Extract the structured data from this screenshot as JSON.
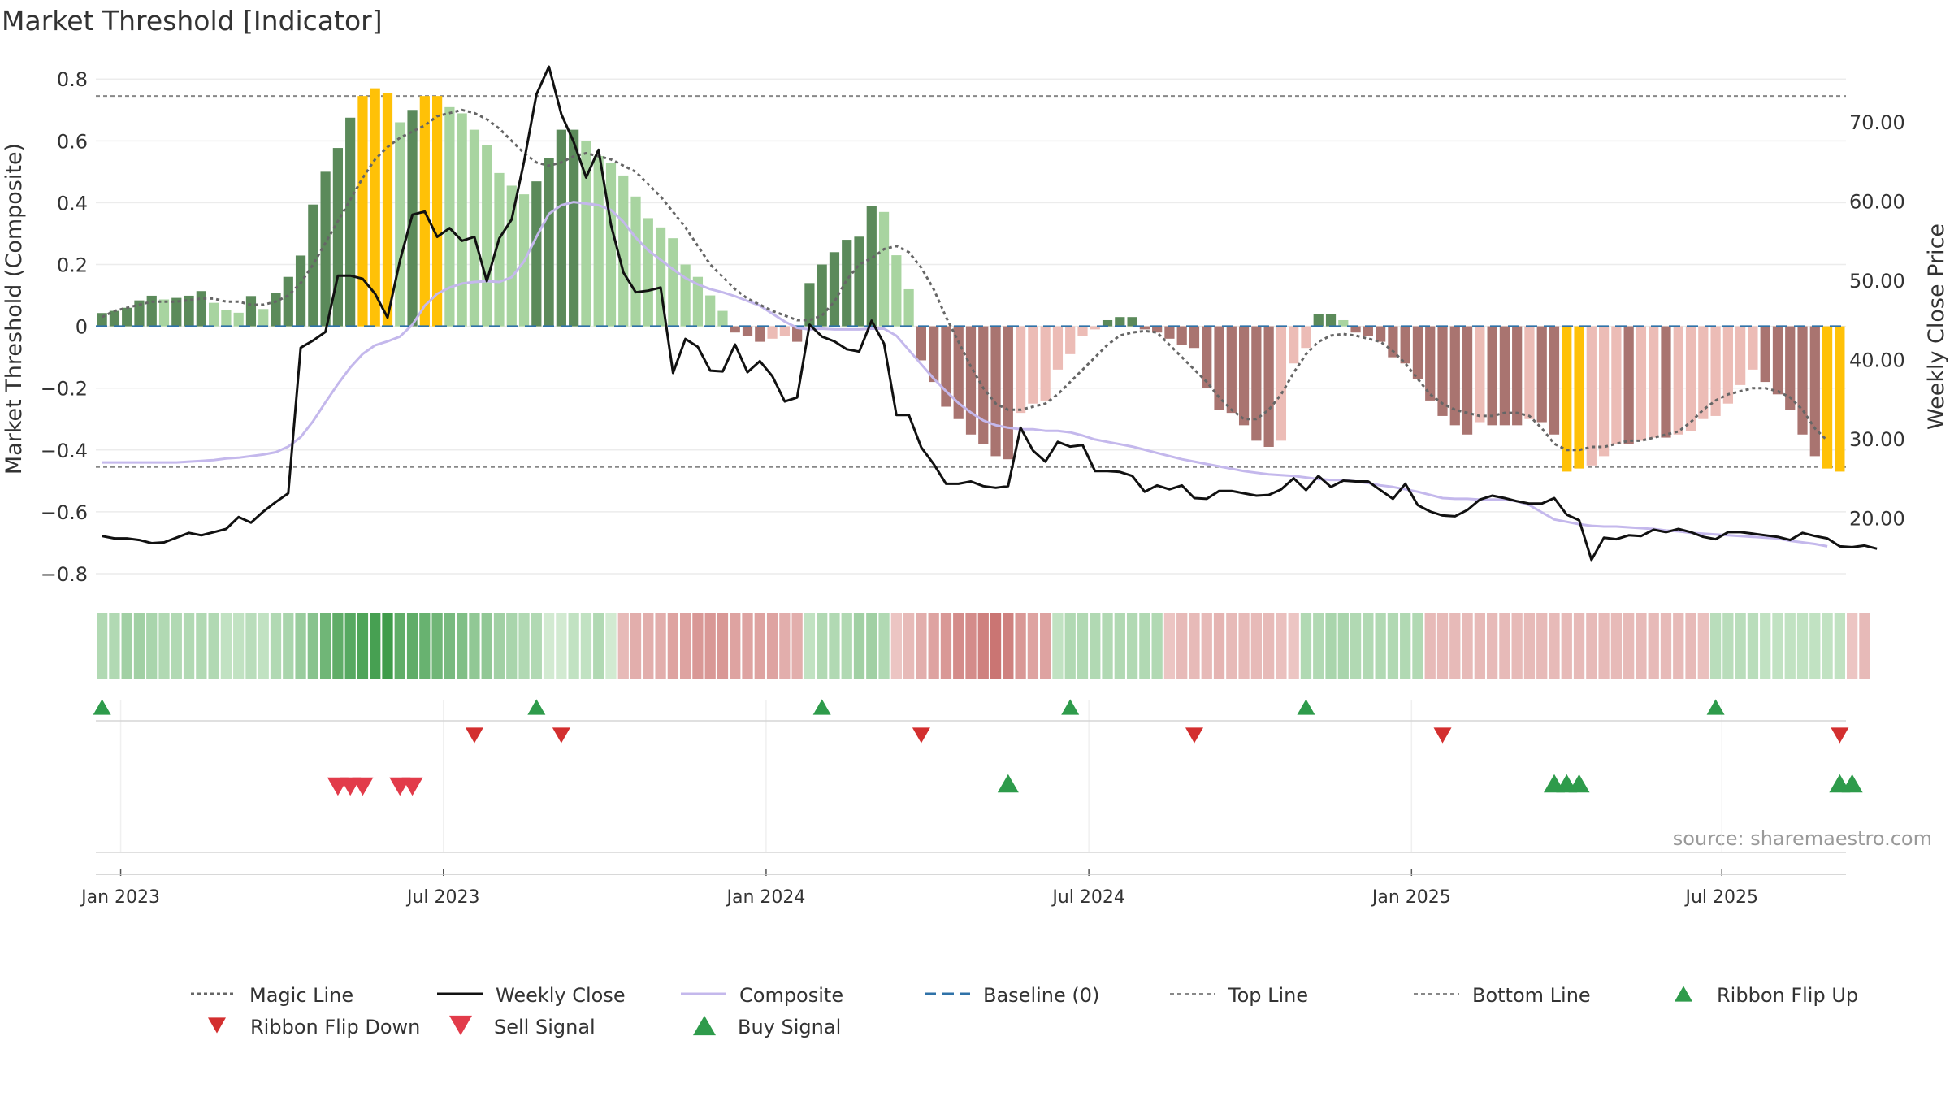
{
  "title": "Market Threshold [Indicator]",
  "source": "source: sharemaestro.com",
  "chart_data": {
    "type": "bar",
    "title": "Market Threshold [Indicator]",
    "ylabel": "Market Threshold (Composite)",
    "y2label": "Weekly Close Price",
    "ylim": [
      -0.85,
      0.84
    ],
    "y2lim": [
      11.0,
      77.0
    ],
    "yticks": [
      {
        "v": 0.8,
        "label": "0.8"
      },
      {
        "v": 0.6,
        "label": "0.6"
      },
      {
        "v": 0.4,
        "label": "0.4"
      },
      {
        "v": 0.2,
        "label": "0.2"
      },
      {
        "v": 0,
        "label": "0"
      },
      {
        "v": -0.2,
        "label": "−0.2"
      },
      {
        "v": -0.4,
        "label": "−0.4"
      },
      {
        "v": -0.6,
        "label": "−0.6"
      },
      {
        "v": -0.8,
        "label": "−0.8"
      }
    ],
    "y2ticks": [
      {
        "v": 70,
        "label": "70.00"
      },
      {
        "v": 60,
        "label": "60.00"
      },
      {
        "v": 50,
        "label": "50.00"
      },
      {
        "v": 40,
        "label": "40.00"
      },
      {
        "v": 30,
        "label": "30.00"
      },
      {
        "v": 20,
        "label": "20.00"
      }
    ],
    "xticks": [
      {
        "week": 2,
        "label": "Jan 2023"
      },
      {
        "week": 28,
        "label": "Jul 2023"
      },
      {
        "week": 54,
        "label": "Jan 2024"
      },
      {
        "week": 80,
        "label": "Jul 2024"
      },
      {
        "week": 106,
        "label": "Jan 2025"
      },
      {
        "week": 131,
        "label": "Jul 2025"
      }
    ],
    "top_line": 0.745,
    "bottom_line": -0.455,
    "baseline": 0,
    "composite": [
      0.043,
      0.05,
      0.06,
      0.084,
      0.099,
      0.087,
      0.092,
      0.099,
      0.114,
      0.076,
      0.052,
      0.044,
      0.098,
      0.056,
      0.109,
      0.16,
      0.229,
      0.394,
      0.5,
      0.577,
      0.675,
      0.745,
      0.77,
      0.754,
      0.66,
      0.7,
      0.745,
      0.745,
      0.709,
      0.689,
      0.636,
      0.587,
      0.496,
      0.455,
      0.427,
      0.469,
      0.545,
      0.636,
      0.636,
      0.6,
      0.551,
      0.528,
      0.488,
      0.42,
      0.35,
      0.32,
      0.285,
      0.2,
      0.16,
      0.1,
      0.05,
      -0.02,
      -0.03,
      -0.05,
      -0.04,
      -0.03,
      -0.05,
      0.14,
      0.2,
      0.24,
      0.28,
      0.29,
      0.39,
      0.37,
      0.23,
      0.12,
      -0.11,
      -0.18,
      -0.26,
      -0.3,
      -0.35,
      -0.38,
      -0.42,
      -0.43,
      -0.28,
      -0.25,
      -0.24,
      -0.14,
      -0.09,
      -0.03,
      -0.01,
      0.02,
      0.03,
      0.03,
      -0.01,
      -0.02,
      -0.04,
      -0.06,
      -0.07,
      -0.2,
      -0.27,
      -0.28,
      -0.32,
      -0.37,
      -0.39,
      -0.37,
      -0.12,
      -0.07,
      0.04,
      0.04,
      0.02,
      -0.02,
      -0.03,
      -0.05,
      -0.1,
      -0.12,
      -0.17,
      -0.24,
      -0.29,
      -0.32,
      -0.35,
      -0.31,
      -0.32,
      -0.32,
      -0.32,
      -0.3,
      -0.31,
      -0.35,
      -0.47,
      -0.46,
      -0.45,
      -0.42,
      -0.38,
      -0.38,
      -0.37,
      -0.36,
      -0.36,
      -0.35,
      -0.34,
      -0.3,
      -0.29,
      -0.25,
      -0.19,
      -0.14,
      -0.18,
      -0.22,
      -0.27,
      -0.35,
      -0.42,
      -0.46,
      -0.47
    ],
    "weekly_close": [
      17.7,
      17.4,
      17.4,
      17.2,
      16.8,
      16.9,
      17.5,
      18.1,
      17.8,
      18.2,
      18.6,
      20.1,
      19.4,
      20.8,
      22.0,
      23.1,
      41.5,
      42.4,
      43.5,
      50.6,
      50.6,
      50.2,
      48.3,
      45.3,
      52.5,
      58.3,
      58.7,
      55.5,
      56.6,
      55.0,
      55.5,
      49.9,
      55.3,
      57.7,
      65.0,
      73.5,
      77.0,
      71.0,
      67.5,
      63.0,
      66.5,
      57.0,
      51.0,
      48.5,
      48.7,
      49.1,
      38.3,
      42.6,
      41.6,
      38.6,
      38.5,
      41.9,
      38.4,
      39.8,
      37.9,
      34.7,
      35.2,
      44.4,
      42.9,
      42.3,
      41.3,
      41.0,
      44.9,
      42.0,
      33.0,
      33.0,
      28.9,
      26.8,
      24.3,
      24.3,
      24.6,
      24.0,
      23.8,
      24.0,
      31.4,
      28.5,
      27.1,
      29.6,
      29.0,
      29.2,
      25.9,
      25.9,
      25.8,
      25.3,
      23.3,
      24.1,
      23.6,
      24.1,
      22.5,
      22.4,
      23.4,
      23.4,
      23.1,
      22.8,
      22.9,
      23.6,
      25.0,
      23.5,
      25.3,
      23.9,
      24.7,
      24.6,
      24.6,
      23.5,
      22.4,
      24.3,
      21.6,
      20.8,
      20.3,
      20.2,
      21.0,
      22.3,
      22.8,
      22.5,
      22.1,
      21.8,
      21.8,
      22.5,
      20.4,
      19.7,
      14.7,
      17.5,
      17.3,
      17.8,
      17.7,
      18.5,
      18.2,
      18.6,
      18.2,
      17.6,
      17.3,
      18.2,
      18.2,
      18.0,
      17.8,
      17.6,
      17.2,
      18.1,
      17.7,
      17.4,
      16.4,
      16.3,
      16.5,
      16.1
    ],
    "magic_line": [
      0.03,
      0.05,
      0.06,
      0.07,
      0.08,
      0.08,
      0.08,
      0.085,
      0.09,
      0.09,
      0.08,
      0.08,
      0.07,
      0.07,
      0.08,
      0.1,
      0.14,
      0.2,
      0.27,
      0.34,
      0.41,
      0.48,
      0.54,
      0.58,
      0.61,
      0.63,
      0.65,
      0.68,
      0.69,
      0.7,
      0.69,
      0.67,
      0.64,
      0.6,
      0.56,
      0.53,
      0.52,
      0.53,
      0.55,
      0.56,
      0.55,
      0.54,
      0.52,
      0.5,
      0.46,
      0.42,
      0.37,
      0.32,
      0.26,
      0.2,
      0.16,
      0.12,
      0.09,
      0.07,
      0.05,
      0.035,
      0.02,
      0.02,
      0.035,
      0.08,
      0.15,
      0.2,
      0.22,
      0.25,
      0.26,
      0.24,
      0.19,
      0.12,
      0.03,
      -0.05,
      -0.13,
      -0.2,
      -0.25,
      -0.27,
      -0.27,
      -0.26,
      -0.25,
      -0.22,
      -0.18,
      -0.14,
      -0.1,
      -0.06,
      -0.03,
      -0.02,
      -0.015,
      -0.02,
      -0.06,
      -0.1,
      -0.14,
      -0.18,
      -0.23,
      -0.27,
      -0.3,
      -0.3,
      -0.27,
      -0.22,
      -0.15,
      -0.09,
      -0.05,
      -0.03,
      -0.025,
      -0.03,
      -0.04,
      -0.05,
      -0.08,
      -0.12,
      -0.17,
      -0.22,
      -0.25,
      -0.27,
      -0.28,
      -0.29,
      -0.29,
      -0.28,
      -0.28,
      -0.29,
      -0.33,
      -0.38,
      -0.4,
      -0.4,
      -0.39,
      -0.39,
      -0.38,
      -0.37,
      -0.37,
      -0.36,
      -0.35,
      -0.34,
      -0.31,
      -0.27,
      -0.24,
      -0.22,
      -0.21,
      -0.2,
      -0.2,
      -0.21,
      -0.23,
      -0.27,
      -0.33,
      -0.37
    ],
    "composite_line": [
      27,
      27,
      27,
      27,
      27,
      27,
      27,
      27.1,
      27.2,
      27.3,
      27.5,
      27.6,
      27.8,
      28,
      28.3,
      29,
      30.2,
      32.2,
      34.6,
      36.9,
      39,
      40.7,
      41.8,
      42.3,
      42.9,
      44.4,
      46.8,
      48.3,
      49.1,
      49.6,
      49.8,
      49.9,
      49.8,
      50.4,
      52.4,
      55.5,
      58.4,
      59.5,
      59.9,
      59.7,
      59.5,
      58.9,
      57.4,
      55.4,
      53.8,
      52.6,
      51.4,
      50.3,
      49.5,
      48.9,
      48.5,
      48,
      47.4,
      46.8,
      45.8,
      44.8,
      44,
      43.8,
      43.9,
      43.8,
      43.8,
      43.8,
      43.9,
      43.9,
      43,
      41.2,
      39.4,
      37.6,
      36,
      34.5,
      33.3,
      32.3,
      31.7,
      31.4,
      31.2,
      31.2,
      31,
      31,
      30.8,
      30.4,
      29.9,
      29.6,
      29.3,
      29,
      28.6,
      28.2,
      27.8,
      27.4,
      27.1,
      26.8,
      26.5,
      26.2,
      25.9,
      25.7,
      25.5,
      25.4,
      25.3,
      25.1,
      24.9,
      24.8,
      24.8,
      24.6,
      24.4,
      24.1,
      23.9,
      23.6,
      23.3,
      22.9,
      22.5,
      22.4,
      22.4,
      22.3,
      22.3,
      22.3,
      22.1,
      21.6,
      20.7,
      19.8,
      19.5,
      19.2,
      19,
      18.9,
      18.9,
      18.8,
      18.7,
      18.6,
      18.4,
      18.3,
      18.1,
      18,
      17.9,
      17.8,
      17.7,
      17.6,
      17.5,
      17.4,
      17.1,
      16.9,
      16.7,
      16.4
    ],
    "ribbon": [
      0.3,
      0.3,
      0.4,
      0.4,
      0.35,
      0.3,
      0.3,
      0.3,
      0.3,
      0.3,
      0.2,
      0.2,
      0.25,
      0.2,
      0.3,
      0.35,
      0.45,
      0.55,
      0.7,
      0.8,
      0.85,
      0.9,
      0.95,
      1.0,
      0.8,
      0.8,
      0.75,
      0.7,
      0.65,
      0.6,
      0.5,
      0.5,
      0.4,
      0.35,
      0.3,
      0.3,
      0.1,
      0.1,
      0.2,
      0.2,
      0.3,
      0.1,
      -0.3,
      -0.4,
      -0.4,
      -0.4,
      -0.5,
      -0.5,
      -0.6,
      -0.6,
      -0.6,
      -0.5,
      -0.5,
      -0.5,
      -0.5,
      -0.4,
      -0.4,
      0.2,
      0.3,
      0.3,
      0.3,
      0.4,
      0.4,
      0.3,
      -0.2,
      -0.3,
      -0.4,
      -0.5,
      -0.6,
      -0.7,
      -0.7,
      -0.8,
      -0.9,
      -0.8,
      -0.6,
      -0.5,
      -0.5,
      0.2,
      0.3,
      0.3,
      0.3,
      0.3,
      0.3,
      0.3,
      0.3,
      0.3,
      -0.2,
      -0.3,
      -0.3,
      -0.3,
      -0.35,
      -0.3,
      -0.3,
      -0.3,
      -0.3,
      -0.25,
      -0.2,
      0.3,
      0.3,
      0.35,
      0.35,
      0.3,
      0.3,
      0.3,
      0.3,
      0.3,
      0.3,
      -0.3,
      -0.3,
      -0.3,
      -0.3,
      -0.3,
      -0.3,
      -0.3,
      -0.3,
      -0.3,
      -0.3,
      -0.3,
      -0.3,
      -0.3,
      -0.3,
      -0.3,
      -0.3,
      -0.3,
      -0.3,
      -0.3,
      -0.3,
      -0.3,
      -0.3,
      -0.25,
      0.25,
      0.25,
      0.25,
      0.25,
      0.2,
      0.2,
      0.2,
      0.2,
      0.2,
      0.2,
      0.2,
      -0.2,
      -0.3
    ],
    "ribbon_flip_up": [
      0,
      35,
      58,
      78,
      97,
      130
    ],
    "ribbon_flip_down": [
      30,
      37,
      66,
      88,
      108,
      140
    ],
    "sell_signals": [
      19,
      20,
      21,
      24,
      25
    ],
    "buy_signals": [
      73,
      117,
      118,
      119,
      140,
      141
    ],
    "legend": [
      {
        "key": "magic",
        "label": "Magic Line"
      },
      {
        "key": "close",
        "label": "Weekly Close"
      },
      {
        "key": "comp",
        "label": "Composite"
      },
      {
        "key": "base",
        "label": "Baseline (0)"
      },
      {
        "key": "top",
        "label": "Top Line"
      },
      {
        "key": "bottom",
        "label": "Bottom Line"
      },
      {
        "key": "flipup",
        "label": "Ribbon Flip Up"
      },
      {
        "key": "flipdown",
        "label": "Ribbon Flip Down"
      },
      {
        "key": "sell",
        "label": "Sell Signal"
      },
      {
        "key": "buy",
        "label": "Buy Signal"
      }
    ],
    "colors": {
      "pos_strong": "#5b8a5a",
      "pos_light": "#a8d4a0",
      "neg_strong": "#a97470",
      "neg_light": "#ecbcb6",
      "extreme": "#ffc107",
      "close": "#111111",
      "composite": "#c4b8ec",
      "magic": "#666666",
      "baseline": "#2f72a8",
      "threshold": "#888888",
      "flip_up": "#2e9b4b",
      "flip_down": "#d32f2f",
      "sell": "#e23b4a",
      "buy": "#2e9b4b"
    }
  }
}
